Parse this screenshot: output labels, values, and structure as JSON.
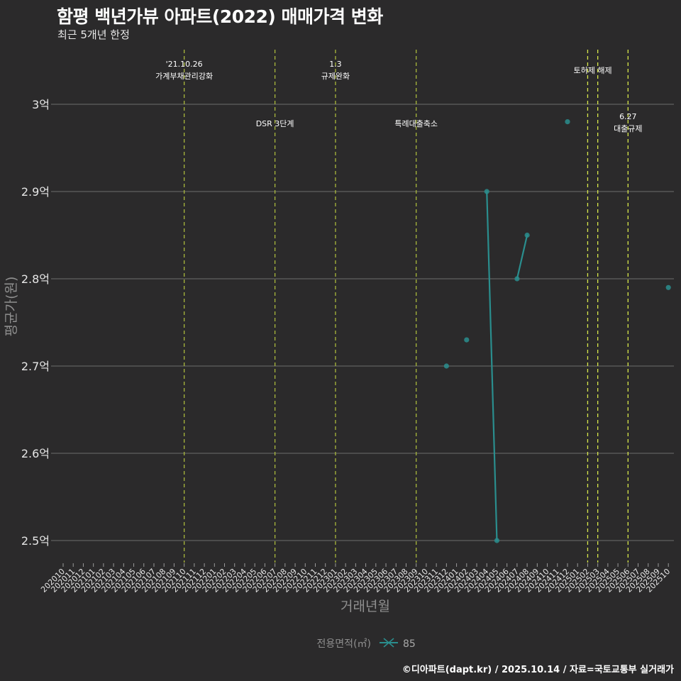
{
  "header": {
    "title": "함평 백년가뷰 아파트(2022) 매매가격 변화",
    "subtitle": "최근 5개년 한정"
  },
  "footer": {
    "credit": "©디아파트(dapt.kr) / 2025.10.14 / 자료=국토교통부 실거래가"
  },
  "colors": {
    "background": "#2b2a2b",
    "grid": "#6e6e6e",
    "series": "#2a8e8e",
    "event_line_early": "#a9b83c",
    "event_line_late": "#d8e84a"
  },
  "chart_data": {
    "type": "line",
    "title": "함평 백년가뷰 아파트(2022) 매매가격 변화",
    "subtitle": "최근 5개년 한정",
    "xlabel": "거래년월",
    "ylabel": "평균가(원)",
    "ylim": [
      2.475,
      3.063
    ],
    "yticks": [
      3.0,
      2.9,
      2.8,
      2.7,
      2.6,
      2.5
    ],
    "ytick_labels": [
      "3억",
      "2.9억",
      "2.8억",
      "2.7억",
      "2.6억",
      "2.5억"
    ],
    "grid": "horizontal major only",
    "x_categories": [
      "202010",
      "202011",
      "202012",
      "202101",
      "202102",
      "202103",
      "202104",
      "202105",
      "202106",
      "202107",
      "202108",
      "202109",
      "202110",
      "202111",
      "202112",
      "202201",
      "202202",
      "202203",
      "202204",
      "202205",
      "202206",
      "202207",
      "202208",
      "202209",
      "202210",
      "202211",
      "202212",
      "202301",
      "202302",
      "202303",
      "202304",
      "202305",
      "202306",
      "202307",
      "202308",
      "202309",
      "202310",
      "202311",
      "202312",
      "202401",
      "202402",
      "202403",
      "202404",
      "202405",
      "202406",
      "202407",
      "202408",
      "202409",
      "202410",
      "202411",
      "202412",
      "202501",
      "202502",
      "202503",
      "202504",
      "202505",
      "202506",
      "202507",
      "202508",
      "202509",
      "202510"
    ],
    "legend": {
      "title": "전용면적(㎡)",
      "position": "bottom",
      "entries": [
        "85"
      ]
    },
    "series": [
      {
        "name": "85",
        "points": [
          {
            "x": "202312",
            "y": 2.7
          },
          {
            "x": "202402",
            "y": 2.73
          },
          {
            "x": "202404",
            "y": 2.9
          },
          {
            "x": "202405",
            "y": 2.5
          },
          {
            "x": "202407",
            "y": 2.8
          },
          {
            "x": "202408",
            "y": 2.85
          },
          {
            "x": "202412",
            "y": 2.98
          },
          {
            "x": "202510",
            "y": 2.79
          }
        ]
      }
    ],
    "annotations": [
      {
        "x": "202110",
        "lines": [
          "'21.10.26",
          "가계부채관리강화"
        ],
        "row": "top"
      },
      {
        "x": "202207",
        "lines": [
          "DSR 3단계"
        ],
        "row": "bottom"
      },
      {
        "x": "202301",
        "lines": [
          "1.3",
          "규제완화"
        ],
        "row": "top"
      },
      {
        "x": "202309",
        "lines": [
          "특례대출축소"
        ],
        "row": "bottom"
      },
      {
        "x": "202502",
        "lines": [
          "토허제 해제"
        ],
        "row": "top-single",
        "label_x": "202503"
      },
      {
        "x": "202503",
        "lines": [],
        "row": "none"
      },
      {
        "x": "202506",
        "lines": [
          "6.27",
          "대출규제"
        ],
        "row": "bottom"
      }
    ]
  }
}
